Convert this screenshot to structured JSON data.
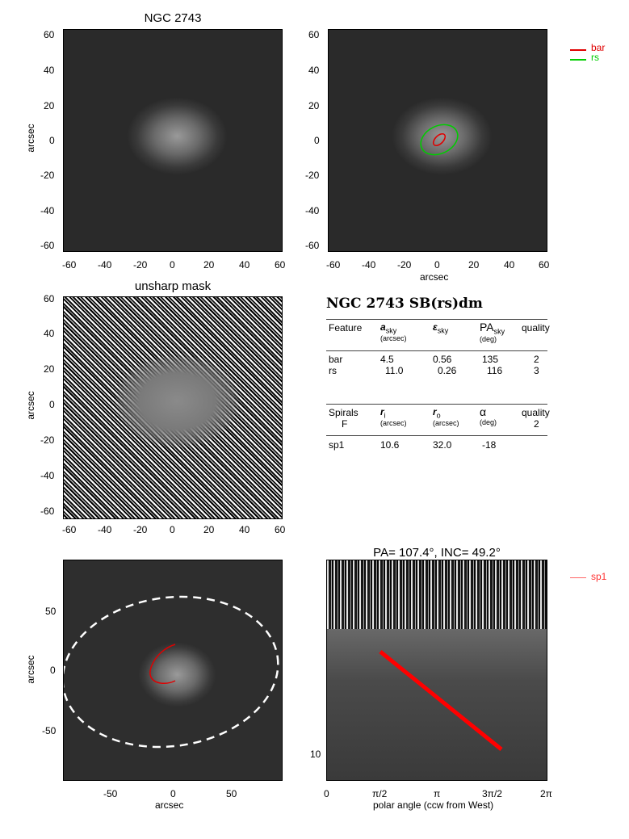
{
  "panel1": {
    "title": "NGC 2743",
    "ylabel": "arcsec",
    "yticks": [
      "60",
      "40",
      "20",
      "0",
      "-20",
      "-40",
      "-60"
    ],
    "xticks": [
      "-60",
      "-40",
      "-20",
      "0",
      "20",
      "40",
      "60"
    ]
  },
  "panel2": {
    "xlabel": "arcsec",
    "yticks": [
      "60",
      "40",
      "20",
      "0",
      "-20",
      "-40",
      "-60"
    ],
    "xticks": [
      "-60",
      "-40",
      "-20",
      "0",
      "20",
      "40",
      "60"
    ],
    "legend": [
      {
        "label": "bar",
        "color": "#e00000"
      },
      {
        "label": "rs",
        "color": "#00cc00"
      }
    ]
  },
  "panel3": {
    "title": "unsharp mask",
    "ylabel": "arcsec",
    "yticks": [
      "60",
      "40",
      "20",
      "0",
      "-20",
      "-40",
      "-60"
    ],
    "xticks": [
      "-60",
      "-40",
      "-20",
      "0",
      "20",
      "40",
      "60"
    ]
  },
  "table": {
    "heading": "NGC 2743  SB(rs)dm",
    "h1": {
      "c1": "Feature",
      "c2": "a",
      "c2sub": "sky",
      "c2unit": "(arcsec)",
      "c3": "ε",
      "c3sub": "sky",
      "c4": "PA",
      "c4sub": "sky",
      "c4unit": "(deg)",
      "c5": "quality"
    },
    "rows1": [
      {
        "f": "bar",
        "a": "4.5",
        "e": "0.56",
        "pa": "135",
        "q": "2"
      },
      {
        "f": "rs",
        "a": "11.0",
        "e": "0.26",
        "pa": "116",
        "q": "3"
      }
    ],
    "h2": {
      "c1": "Spirals",
      "c1b": "F",
      "c2": "r",
      "c2sub": "i",
      "c2unit": "(arcsec)",
      "c3": "r",
      "c3sub": "o",
      "c3unit": "(arcsec)",
      "c4": "α",
      "c4unit": "(deg)",
      "c5": "quality",
      "c5b": "2"
    },
    "rows2": [
      {
        "f": "sp1",
        "ri": "10.6",
        "ro": "32.0",
        "al": "-18"
      }
    ]
  },
  "panel5": {
    "ylabel": "arcsec",
    "xlabel": "arcsec",
    "yticks": [
      "50",
      "0",
      "-50"
    ],
    "xticks": [
      "-50",
      "0",
      "50"
    ]
  },
  "panel6": {
    "title": "PA= 107.4°, INC=  49.2°",
    "xlabel": "polar angle (ccw from West)",
    "xticks": [
      "0",
      "π/2",
      "π",
      "3π/2",
      "2π"
    ],
    "ytick": "10",
    "legend": [
      {
        "label": "sp1",
        "color": "#ff6666"
      }
    ]
  }
}
